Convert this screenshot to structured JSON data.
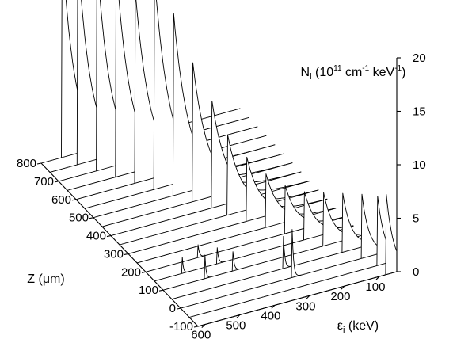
{
  "chart_data": {
    "type": "waterfall",
    "x_axis": {
      "label": "ε",
      "label_sub": "i",
      "label_unit": " (keV)",
      "ticks": [
        100,
        200,
        300,
        400,
        500,
        600
      ],
      "range": [
        50,
        620
      ]
    },
    "z_axis": {
      "label": "Z (μm)",
      "ticks": [
        -100,
        0,
        100,
        200,
        300,
        400,
        500,
        600,
        700,
        800
      ],
      "range": [
        -100,
        800
      ]
    },
    "y_axis": {
      "label": "N",
      "label_sub": "i",
      "label_parts": [
        " (10",
        "11",
        " cm",
        "-1",
        " keV",
        "-1",
        ")"
      ],
      "ticks": [
        0,
        5,
        10,
        15,
        20
      ],
      "range": [
        0,
        20
      ]
    },
    "traces": [
      {
        "z": -100,
        "peaks": [
          {
            "e": 80,
            "h": 7.5,
            "w": 22
          }
        ]
      },
      {
        "z": -50,
        "peaks": [
          {
            "e": 80,
            "h": 6.5,
            "w": 22
          }
        ]
      },
      {
        "z": 0,
        "peaks": [
          {
            "e": 300,
            "h": 4.5,
            "w": 4
          },
          {
            "e": 100,
            "h": 6.0,
            "w": 22
          }
        ]
      },
      {
        "z": 50,
        "peaks": [
          {
            "e": 300,
            "h": 3.0,
            "w": 4
          },
          {
            "e": 130,
            "h": 5.5,
            "w": 26
          }
        ]
      },
      {
        "z": 100,
        "peaks": [
          {
            "e": 500,
            "h": 2.2,
            "w": 3
          },
          {
            "e": 420,
            "h": 1.8,
            "w": 4
          },
          {
            "e": 160,
            "h": 5.0,
            "w": 30
          }
        ]
      },
      {
        "z": 150,
        "peaks": [
          {
            "e": 540,
            "h": 1.5,
            "w": 3
          },
          {
            "e": 440,
            "h": 1.5,
            "w": 4
          },
          {
            "e": 190,
            "h": 4.5,
            "w": 34
          }
        ]
      },
      {
        "z": 200,
        "peaks": [
          {
            "e": 470,
            "h": 1.2,
            "w": 4
          },
          {
            "e": 220,
            "h": 4.5,
            "w": 36
          }
        ]
      },
      {
        "z": 250,
        "peaks": [
          {
            "e": 250,
            "h": 5.0,
            "w": 38
          }
        ]
      },
      {
        "z": 300,
        "peaks": [
          {
            "e": 280,
            "h": 6.0,
            "w": 40
          }
        ]
      },
      {
        "z": 350,
        "peaks": [
          {
            "e": 310,
            "h": 7.5,
            "w": 42
          }
        ]
      },
      {
        "z": 400,
        "peaks": [
          {
            "e": 330,
            "h": 10.0,
            "w": 44
          }
        ]
      },
      {
        "z": 450,
        "peaks": [
          {
            "e": 360,
            "h": 13.0,
            "w": 45
          }
        ]
      },
      {
        "z": 500,
        "peaks": [
          {
            "e": 390,
            "h": 17.0,
            "w": 45
          }
        ]
      },
      {
        "z": 550,
        "peaks": [
          {
            "e": 420,
            "h": 20.0,
            "w": 45
          }
        ]
      },
      {
        "z": 600,
        "peaks": [
          {
            "e": 300,
            "h": 2.5,
            "w": 3
          },
          {
            "e": 450,
            "h": 18.0,
            "w": 44
          }
        ]
      },
      {
        "z": 650,
        "peaks": [
          {
            "e": 350,
            "h": 2.2,
            "w": 3
          },
          {
            "e": 480,
            "h": 20.0,
            "w": 42
          }
        ]
      },
      {
        "z": 700,
        "peaks": [
          {
            "e": 400,
            "h": 2.0,
            "w": 3
          },
          {
            "e": 510,
            "h": 20.0,
            "w": 40
          }
        ]
      },
      {
        "z": 750,
        "peaks": [
          {
            "e": 540,
            "h": 20.0,
            "w": 38
          }
        ]
      },
      {
        "z": 800,
        "peaks": [
          {
            "e": 560,
            "h": 20.0,
            "w": 36
          }
        ]
      }
    ]
  }
}
